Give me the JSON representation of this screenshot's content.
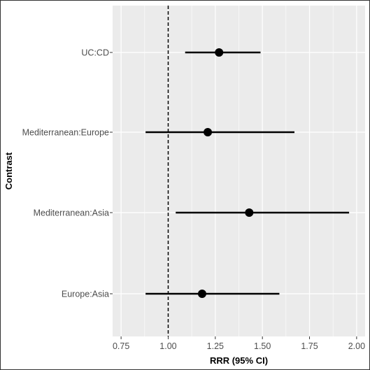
{
  "chart_data": {
    "type": "forest",
    "xlabel": "RRR (95% CI)",
    "ylabel": "Contrast",
    "xlim": [
      0.75,
      2.0
    ],
    "x_ticks": [
      "0.75",
      "1.00",
      "1.25",
      "1.50",
      "1.75",
      "2.00"
    ],
    "x_tick_values": [
      0.75,
      1.0,
      1.25,
      1.5,
      1.75,
      2.0
    ],
    "reference_line": 1.0,
    "grid": true,
    "rows": [
      {
        "label": "UC:CD",
        "estimate": 1.27,
        "lower": 1.09,
        "upper": 1.49
      },
      {
        "label": "Mediterranean:Europe",
        "estimate": 1.21,
        "lower": 0.88,
        "upper": 1.67
      },
      {
        "label": "Mediterranean:Asia",
        "estimate": 1.43,
        "lower": 1.04,
        "upper": 1.96
      },
      {
        "label": "Europe:Asia",
        "estimate": 1.18,
        "lower": 0.88,
        "upper": 1.59
      }
    ],
    "colors": {
      "panel": "#ebebeb",
      "grid": "#ffffff",
      "marker": "#000000"
    }
  }
}
